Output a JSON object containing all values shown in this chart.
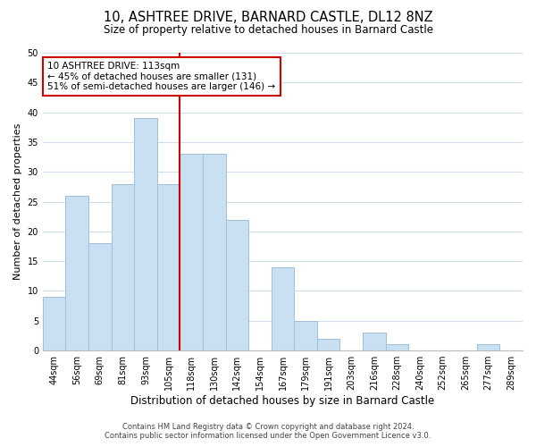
{
  "title": "10, ASHTREE DRIVE, BARNARD CASTLE, DL12 8NZ",
  "subtitle": "Size of property relative to detached houses in Barnard Castle",
  "xlabel": "Distribution of detached houses by size in Barnard Castle",
  "ylabel": "Number of detached properties",
  "bar_labels": [
    "44sqm",
    "56sqm",
    "69sqm",
    "81sqm",
    "93sqm",
    "105sqm",
    "118sqm",
    "130sqm",
    "142sqm",
    "154sqm",
    "167sqm",
    "179sqm",
    "191sqm",
    "203sqm",
    "216sqm",
    "228sqm",
    "240sqm",
    "252sqm",
    "265sqm",
    "277sqm",
    "289sqm"
  ],
  "bar_values": [
    9,
    26,
    18,
    28,
    39,
    28,
    33,
    33,
    22,
    0,
    14,
    5,
    2,
    0,
    3,
    1,
    0,
    0,
    0,
    1,
    0
  ],
  "bar_color": "#c9dff2",
  "bar_edge_color": "#a0bfd8",
  "vline_x_idx": 5.5,
  "vline_color": "#cc0000",
  "annotation_line1": "10 ASHTREE DRIVE: 113sqm",
  "annotation_line2": "← 45% of detached houses are smaller (131)",
  "annotation_line3": "51% of semi-detached houses are larger (146) →",
  "annotation_box_color": "#cc0000",
  "annotation_box_fill": "#ffffff",
  "ylim": [
    0,
    50
  ],
  "yticks": [
    0,
    5,
    10,
    15,
    20,
    25,
    30,
    35,
    40,
    45,
    50
  ],
  "grid_color": "#d0dce8",
  "background_color": "#ffffff",
  "footer_line1": "Contains HM Land Registry data © Crown copyright and database right 2024.",
  "footer_line2": "Contains public sector information licensed under the Open Government Licence v3.0.",
  "title_fontsize": 10.5,
  "subtitle_fontsize": 8.5,
  "xlabel_fontsize": 8.5,
  "ylabel_fontsize": 8,
  "tick_fontsize": 7,
  "annotation_fontsize": 7.5,
  "footer_fontsize": 6
}
